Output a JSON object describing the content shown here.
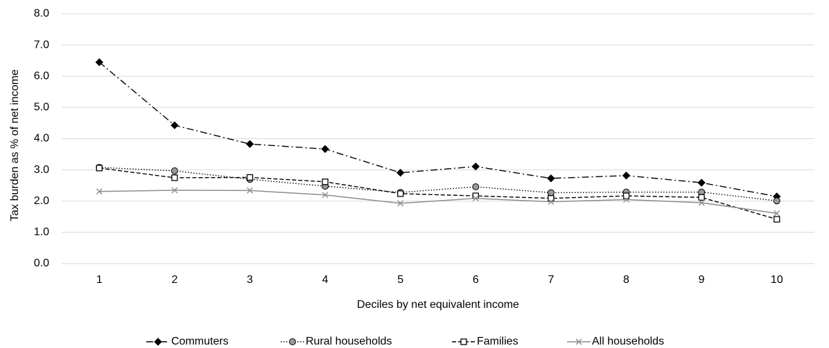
{
  "chart_data": {
    "type": "line",
    "title": "",
    "xlabel": "Deciles by net equivalent income",
    "ylabel": "Tax burden as % of net income",
    "ylim": [
      0,
      8
    ],
    "y_ticks": [
      "0.0",
      "1.0",
      "2.0",
      "3.0",
      "4.0",
      "5.0",
      "6.0",
      "7.0",
      "8.0"
    ],
    "grid": true,
    "legend_position": "bottom",
    "categories": [
      "1",
      "2",
      "3",
      "4",
      "5",
      "6",
      "7",
      "8",
      "9",
      "10"
    ],
    "series": [
      {
        "name": "Commuters",
        "values": [
          6.45,
          4.43,
          3.83,
          3.67,
          2.91,
          3.11,
          2.73,
          2.82,
          2.59,
          2.15
        ],
        "color": "#000000",
        "dash": "dashdot",
        "marker": "diamond"
      },
      {
        "name": "Rural households",
        "values": [
          3.08,
          2.97,
          2.7,
          2.48,
          2.28,
          2.46,
          2.27,
          2.29,
          2.29,
          2.01
        ],
        "color": "#000000",
        "dash": "dotted",
        "marker": "circle"
      },
      {
        "name": "Families",
        "values": [
          3.06,
          2.75,
          2.76,
          2.62,
          2.24,
          2.17,
          2.09,
          2.17,
          2.12,
          1.42
        ],
        "color": "#000000",
        "dash": "dashed",
        "marker": "square"
      },
      {
        "name": "All households",
        "values": [
          2.31,
          2.35,
          2.34,
          2.2,
          1.93,
          2.09,
          1.98,
          2.05,
          1.95,
          1.61
        ],
        "color": "#8c8c8c",
        "dash": "solid",
        "marker": "x"
      }
    ]
  }
}
